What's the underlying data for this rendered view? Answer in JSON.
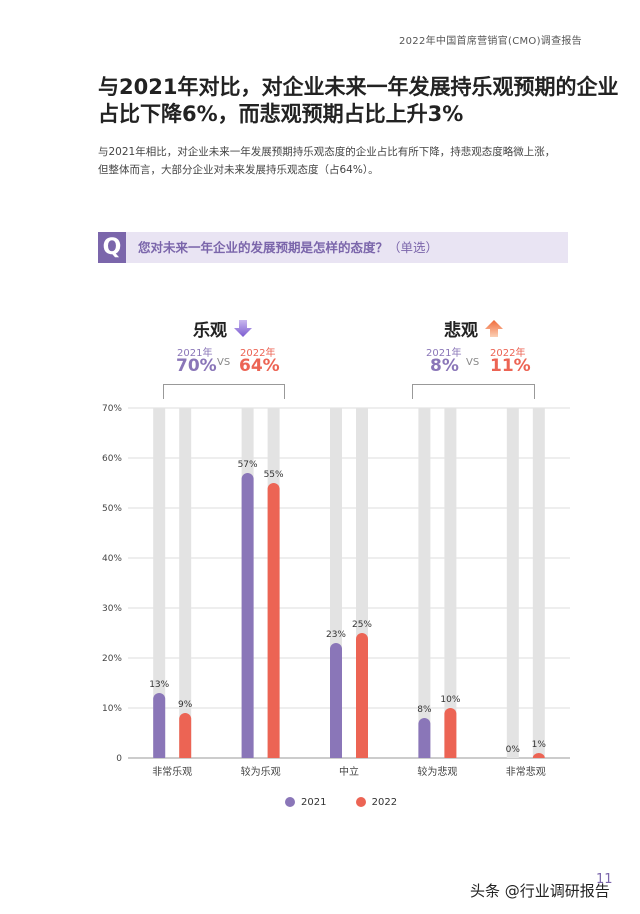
{
  "header": {
    "report_title": "2022年中国首席营销官(CMO)调查报告"
  },
  "page_title": {
    "line1": "与2021年对比，对企业未来一年发展持乐观预期的企业",
    "line2": "占比下降6%，而悲观预期占比上升3%"
  },
  "intro": {
    "line1": "与2021年相比，对企业未来一年发展预期持乐观态度的企业占比有所下降，持悲观态度略微上涨，",
    "line2": "但整体而言，大部分企业对未来发展持乐观态度（占64%）。"
  },
  "question": {
    "badge": "Q",
    "text": "您对未来一年企业的发展预期是怎样的态度？",
    "note": "（单选）"
  },
  "summary": {
    "vs_label": "VS",
    "optimistic": {
      "label": "乐观",
      "trend_icon": "arrow-down-icon",
      "year_a": "2021年",
      "value_a": "70%",
      "year_b": "2022年",
      "value_b": "64%"
    },
    "pessimistic": {
      "label": "悲观",
      "trend_icon": "arrow-up-icon",
      "year_a": "2021年",
      "value_a": "8%",
      "year_b": "2022年",
      "value_b": "11%"
    }
  },
  "colors": {
    "series_2021": "#8a76b8",
    "series_2022": "#ec6454",
    "track": "#e3e3e3",
    "accent": "#7b66ab"
  },
  "chart_data": {
    "type": "bar",
    "categories": [
      "非常乐观",
      "较为乐观",
      "中立",
      "较为悲观",
      "非常悲观"
    ],
    "series": [
      {
        "name": "2021",
        "values": [
          13,
          57,
          23,
          8,
          0
        ],
        "labels": [
          "13%",
          "57%",
          "23%",
          "8%",
          "0%"
        ]
      },
      {
        "name": "2022",
        "values": [
          9,
          55,
          25,
          10,
          1
        ],
        "labels": [
          "9%",
          "55%",
          "25%",
          "10%",
          "1%"
        ]
      }
    ],
    "ylim": [
      0,
      70
    ],
    "yticks": [
      "0",
      "10%",
      "20%",
      "30%",
      "40%",
      "50%",
      "60%",
      "70%"
    ],
    "grid": true,
    "legend_position": "bottom-center"
  },
  "footer": {
    "page_number": "11",
    "watermark": "头条 @行业调研报告"
  }
}
